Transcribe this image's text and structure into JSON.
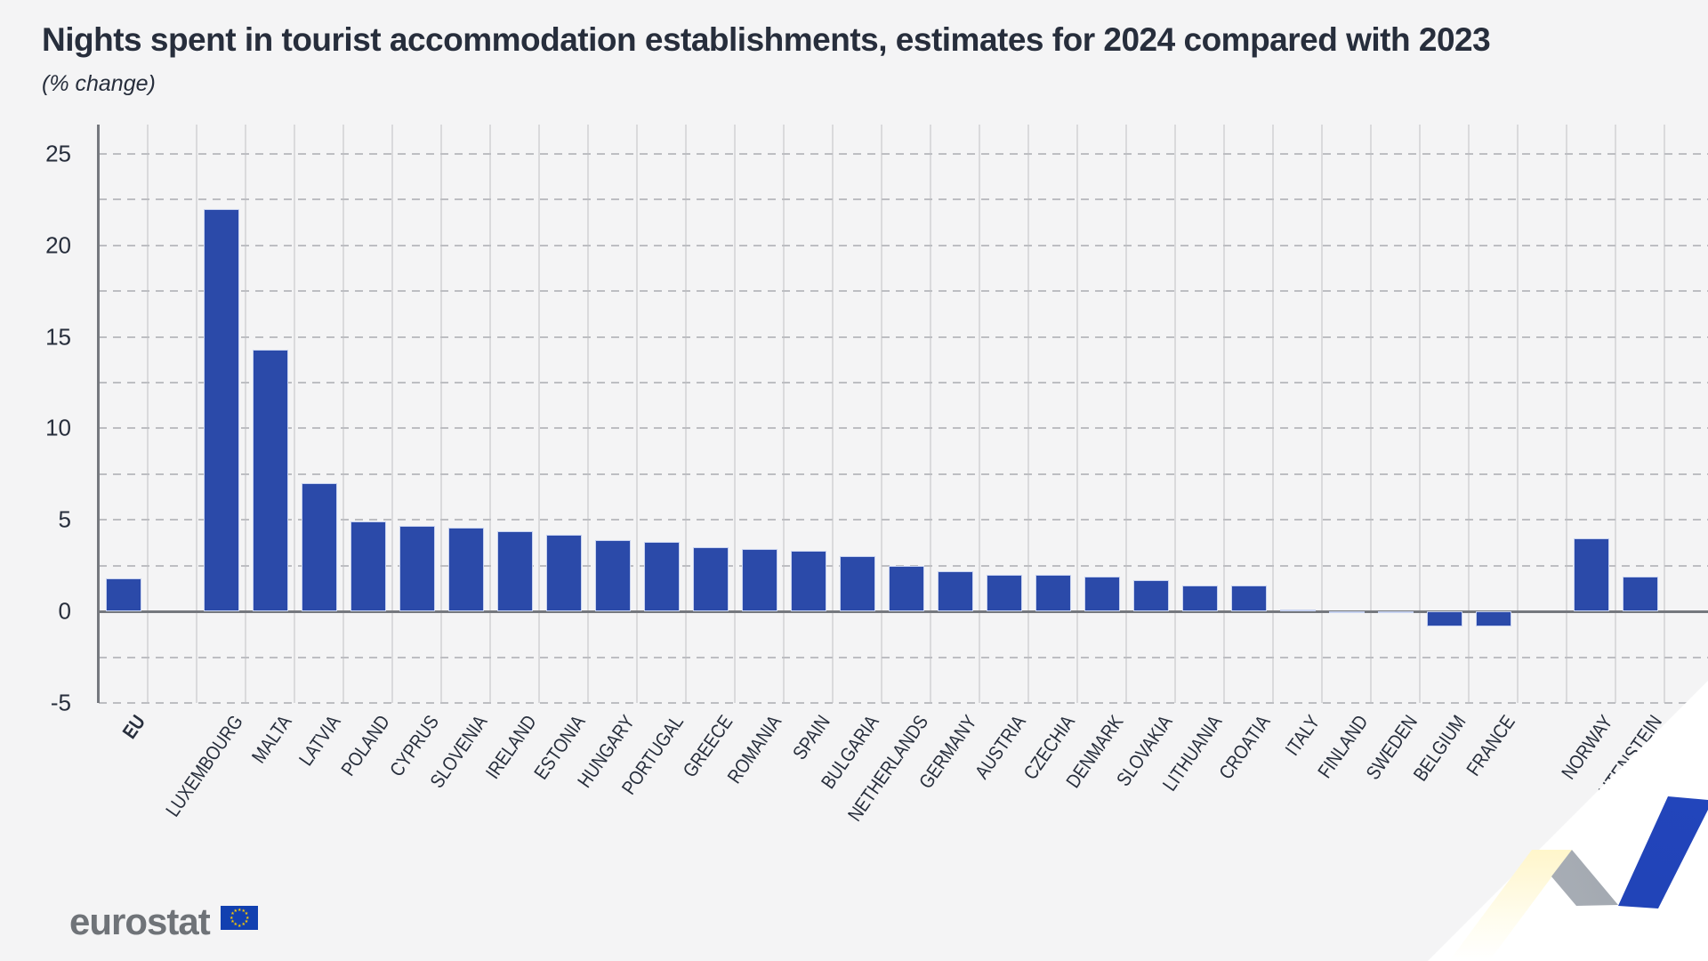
{
  "page": {
    "title": "Nights spent in tourist accommodation establishments, estimates for 2024 compared with 2023",
    "subtitle": "(% change)"
  },
  "chart_data": {
    "type": "bar",
    "title": "Nights spent in tourist accommodation establishments, estimates for 2024 compared with 2023",
    "subtitle": "(% change)",
    "xlabel": "",
    "ylabel": "% change",
    "ylim": [
      -5,
      25
    ],
    "grid_step": 2.5,
    "grid": "on",
    "y_ticks": [
      25,
      20,
      15,
      10,
      5,
      0,
      -5
    ],
    "bar_color": "#2B4AA9",
    "bars": [
      {
        "label": "EU",
        "value": 1.8,
        "bold": true
      },
      {
        "gap": true
      },
      {
        "label": "LUXEMBOURG",
        "value": 22.0
      },
      {
        "label": "MALTA",
        "value": 14.3
      },
      {
        "label": "LATVIA",
        "value": 7.0
      },
      {
        "label": "POLAND",
        "value": 4.9
      },
      {
        "label": "CYPRUS",
        "value": 4.7
      },
      {
        "label": "SLOVENIA",
        "value": 4.6
      },
      {
        "label": "IRELAND",
        "value": 4.4
      },
      {
        "label": "ESTONIA",
        "value": 4.2
      },
      {
        "label": "HUNGARY",
        "value": 3.9
      },
      {
        "label": "PORTUGAL",
        "value": 3.8
      },
      {
        "label": "GREECE",
        "value": 3.5
      },
      {
        "label": "ROMANIA",
        "value": 3.4
      },
      {
        "label": "SPAIN",
        "value": 3.3
      },
      {
        "label": "BULGARIA",
        "value": 3.0
      },
      {
        "label": "NETHERLANDS",
        "value": 2.5
      },
      {
        "label": "GERMANY",
        "value": 2.2
      },
      {
        "label": "AUSTRIA",
        "value": 2.0
      },
      {
        "label": "CZECHIA",
        "value": 2.0
      },
      {
        "label": "DENMARK",
        "value": 1.9
      },
      {
        "label": "SLOVAKIA",
        "value": 1.7
      },
      {
        "label": "LITHUANIA",
        "value": 1.4
      },
      {
        "label": "CROATIA",
        "value": 1.4
      },
      {
        "label": "ITALY",
        "value": 0.1
      },
      {
        "label": "FINLAND",
        "value": 0.0
      },
      {
        "label": "SWEDEN",
        "value": -0.1
      },
      {
        "label": "BELGIUM",
        "value": -0.8
      },
      {
        "label": "FRANCE",
        "value": -0.8
      },
      {
        "gap": true
      },
      {
        "label": "NORWAY",
        "value": 4.0
      },
      {
        "label": "LIECHTENSTEIN",
        "value": 1.9
      }
    ]
  },
  "footer": {
    "logo_text": "eurostat"
  },
  "colors": {
    "background": "#F4F4F5",
    "bar": "#2B4AA9",
    "bar_stroke": "#C7D2F0",
    "axis": "#75787E",
    "grid_vertical": "#DADADC",
    "grid_dashed": "#BDBEC2",
    "text": "#272E3C",
    "logo_gray": "#6F7378",
    "flag_blue": "#1240B0",
    "star_yellow": "#FFCC00",
    "ribbon_yellow": "#FFD425",
    "ribbon_blue": "#2346BE"
  }
}
